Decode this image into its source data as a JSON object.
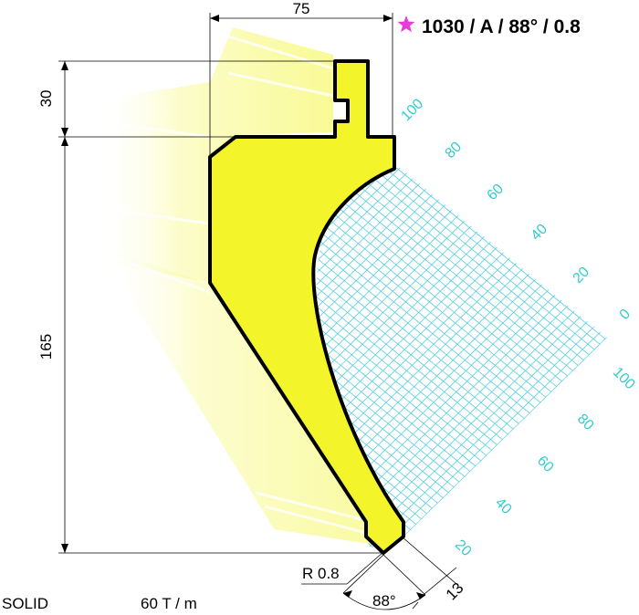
{
  "title": "1030 / A / 88° / 0.8",
  "colors": {
    "accent": "#e63bd9",
    "grid": "#33cccc",
    "fill": "#f3f52a",
    "outline": "#000000"
  },
  "icons": {
    "title_marker": "star-icon"
  },
  "dimensions": {
    "width_label": "75",
    "shank_height_label": "30",
    "body_height_label": "165",
    "radius_label": "R 0.8",
    "angle_label": "88°",
    "tip_label": "13"
  },
  "grid_scale": {
    "upper_labels": [
      "100",
      "80",
      "60",
      "40",
      "20",
      "0"
    ],
    "lower_labels": [
      "100",
      "80",
      "60",
      "40",
      "20"
    ]
  },
  "footer": {
    "material": "SOLID",
    "capacity": "60 T / m"
  }
}
